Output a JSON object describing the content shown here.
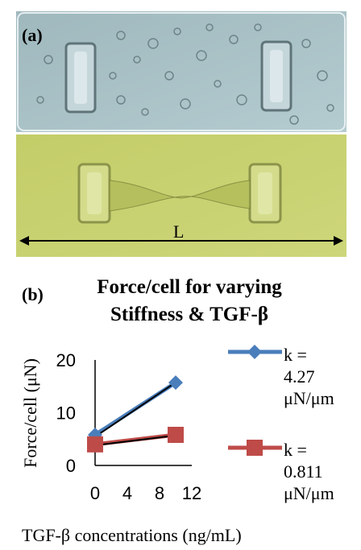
{
  "panel_a": {
    "label": "(a)",
    "length_label": "L"
  },
  "panel_b": {
    "label": "(b)"
  },
  "legend_text": {
    "series1": [
      "k =",
      "4.27",
      "μN/μm"
    ],
    "series2": [
      "k =",
      "0.811",
      "μN/μm"
    ]
  },
  "colors": {
    "series1": "#4a7ebb",
    "series2": "#be4b48",
    "trendline": "#000000",
    "photo_top": "#a8c2c6",
    "photo_bottom": "#c6d06e"
  },
  "chart_data": {
    "type": "line",
    "title": [
      "Force/cell for varying",
      "Stiffness & TGF-β"
    ],
    "xlabel": "TGF-β concentrations (ng/mL)",
    "ylabel": "Force/cell (μN)",
    "xlim": [
      0,
      12
    ],
    "ylim": [
      0,
      20
    ],
    "xticks": [
      0,
      4,
      8,
      12
    ],
    "yticks": [
      0,
      10,
      20
    ],
    "grid": false,
    "legend_position": "right",
    "series": [
      {
        "name": "k = 4.27 μN/μm",
        "marker": "diamond",
        "color": "#4a7ebb",
        "x": [
          0,
          10
        ],
        "y": [
          5.8,
          15.7
        ],
        "trendline": true
      },
      {
        "name": "k = 0.811 μN/μm",
        "marker": "square",
        "color": "#be4b48",
        "x": [
          0,
          10
        ],
        "y": [
          4.0,
          5.8
        ],
        "trendline": true
      }
    ]
  }
}
